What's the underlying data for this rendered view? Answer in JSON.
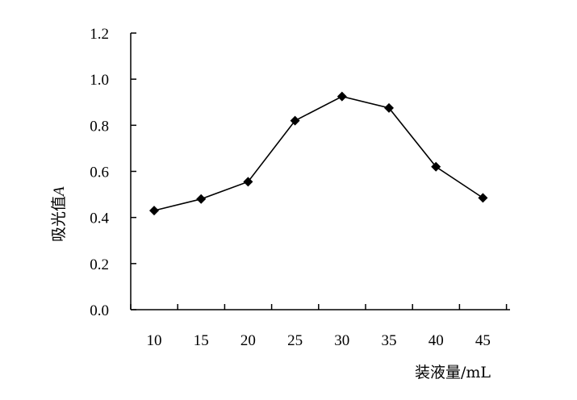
{
  "chart_data": {
    "type": "line",
    "title": "",
    "xlabel": "装液量/mL",
    "ylabel": "吸光值",
    "ylabel_symbol": "A",
    "categories": [
      "10",
      "15",
      "20",
      "25",
      "30",
      "35",
      "40",
      "45"
    ],
    "series": [
      {
        "values": [
          0.43,
          0.48,
          0.555,
          0.82,
          0.925,
          0.875,
          0.62,
          0.485
        ]
      }
    ],
    "y_ticks": [
      "0.0",
      "0.2",
      "0.4",
      "0.6",
      "0.8",
      "1.0",
      "1.2"
    ],
    "ylim": [
      0,
      1.2
    ],
    "grid": false,
    "legend": "none",
    "marker": "diamond",
    "colors": {
      "line": "#000000",
      "marker": "#000000",
      "axis": "#000000"
    }
  }
}
